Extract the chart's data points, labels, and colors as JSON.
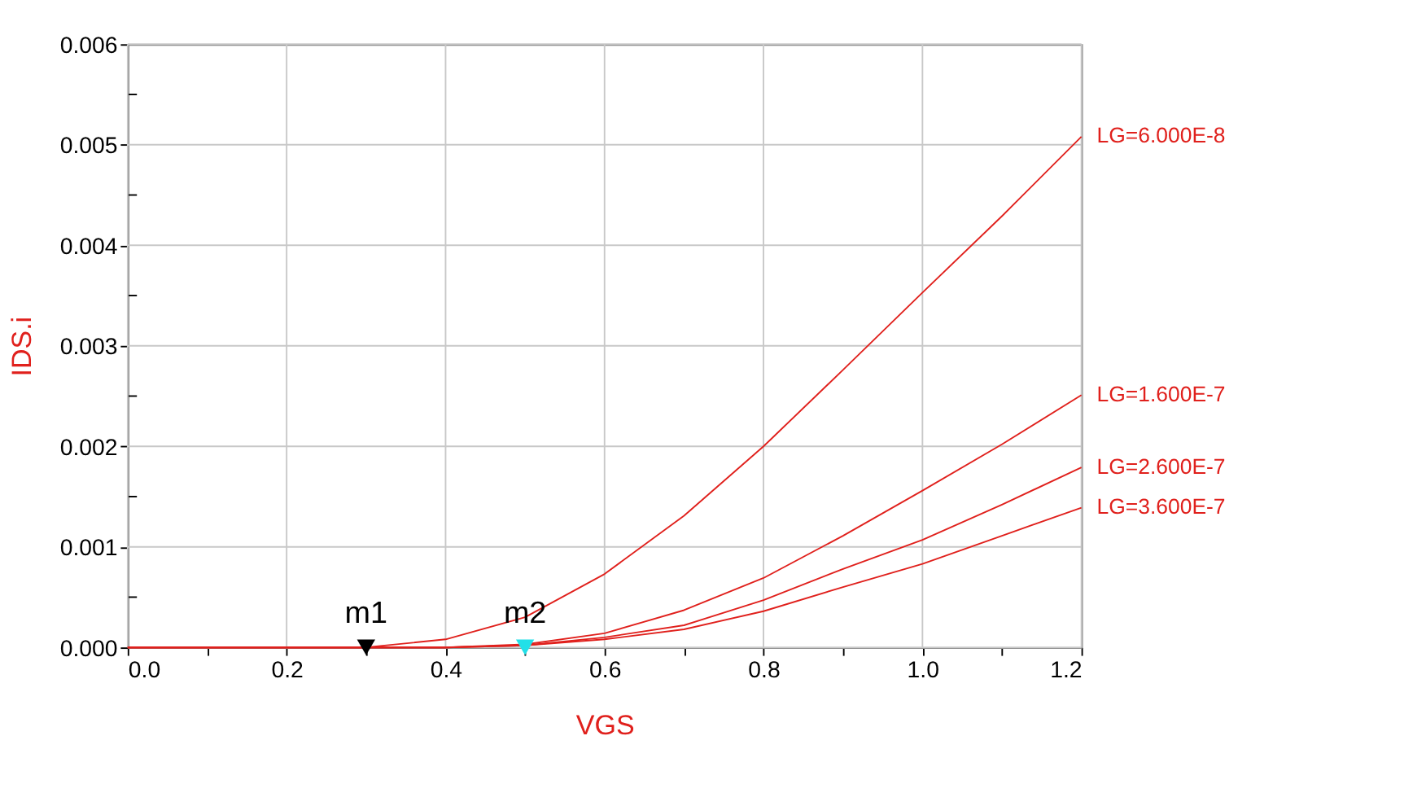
{
  "chart_data": {
    "type": "line",
    "xlabel": "VGS",
    "ylabel": "IDS.i",
    "x": [
      0,
      0.1,
      0.2,
      0.3,
      0.4,
      0.5,
      0.6,
      0.7,
      0.8,
      0.9,
      1.0,
      1.1,
      1.2
    ],
    "series": [
      {
        "name": "LG=6.000E-8",
        "color": "#e0201c",
        "values": [
          0,
          0,
          0,
          0,
          8e-05,
          0.0003,
          0.00073,
          0.00131,
          0.002,
          0.00276,
          0.00353,
          0.00429,
          0.00508
        ]
      },
      {
        "name": "LG=1.600E-7",
        "color": "#e0201c",
        "values": [
          0,
          0,
          0,
          0,
          0,
          3e-05,
          0.00014,
          0.00037,
          0.00069,
          0.00111,
          0.00156,
          0.00202,
          0.00251
        ]
      },
      {
        "name": "LG=2.600E-7",
        "color": "#e0201c",
        "values": [
          0,
          0,
          0,
          0,
          0,
          2e-05,
          0.0001,
          0.00022,
          0.00047,
          0.00078,
          0.00107,
          0.00142,
          0.00179
        ]
      },
      {
        "name": "LG=3.600E-7",
        "color": "#e0201c",
        "values": [
          0,
          0,
          0,
          0,
          0,
          2e-05,
          8e-05,
          0.00018,
          0.00036,
          0.0006,
          0.00083,
          0.00111,
          0.00139
        ]
      },
      {
        "type": "scatter",
        "marker": "triangle",
        "x": [
          0.3,
          0.5
        ],
        "values": [
          0,
          0
        ],
        "colors": [
          "#000000",
          "#22e0e8"
        ]
      }
    ],
    "annotations": [
      {
        "text": "m1",
        "x": 0.3,
        "y": 0
      },
      {
        "text": "m2",
        "x": 0.5,
        "y": 0
      }
    ],
    "xlim": [
      0,
      1.2
    ],
    "ylim": [
      0,
      0.006
    ],
    "xticks": [
      {
        "value": 0,
        "label": "0.0"
      },
      {
        "value": 0.1,
        "label": null
      },
      0.2,
      {
        "value": 0.3,
        "label": null
      },
      0.4,
      {
        "value": 0.5,
        "label": null
      },
      0.6,
      {
        "value": 0.7,
        "label": null
      },
      0.8,
      {
        "value": 0.9,
        "label": null
      },
      {
        "value": 1.0,
        "label": "1.0"
      },
      {
        "value": 1.1,
        "label": null
      },
      1.2
    ],
    "yticks": [
      {
        "value": 0,
        "label": "0.000"
      },
      {
        "value": 0.0005,
        "label": null
      },
      0.001,
      {
        "value": 0.0015,
        "label": null
      },
      0.002,
      {
        "value": 0.0025,
        "label": null
      },
      0.003,
      {
        "value": 0.0035,
        "label": null
      },
      0.004,
      {
        "value": 0.0045,
        "label": null
      },
      0.005,
      {
        "value": 0.0055,
        "label": null
      },
      0.006
    ],
    "grid": true,
    "legend": false,
    "line_style": "solid"
  }
}
